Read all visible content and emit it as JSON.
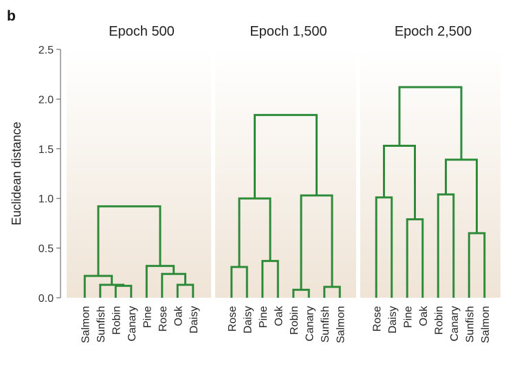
{
  "figure": {
    "panel_label": "b",
    "ylabel": "Euclidean distance",
    "colors": {
      "line": "#2e8b3a",
      "panel_top": "#ffffff",
      "panel_bottom": "#efe4d6",
      "axis": "#555555"
    }
  },
  "chart_data": [
    {
      "type": "dendrogram",
      "title": "Epoch 500",
      "ylim": [
        0,
        2.5
      ],
      "yticks": [
        "0.0",
        "0.5",
        "1.0",
        "1.5",
        "2.0",
        "2.5"
      ],
      "leaves": [
        "Salmon",
        "Sunfish",
        "Robin",
        "Canary",
        "Pine",
        "Rose",
        "Oak",
        "Daisy"
      ],
      "merges": [
        {
          "a": 2,
          "b": 3,
          "height": 0.12
        },
        {
          "a": 1,
          "b": 8,
          "height": 0.13
        },
        {
          "a": 0,
          "b": 9,
          "height": 0.22
        },
        {
          "a": 6,
          "b": 7,
          "height": 0.13
        },
        {
          "a": 5,
          "b": 11,
          "height": 0.24
        },
        {
          "a": 4,
          "b": 12,
          "height": 0.32
        },
        {
          "a": 10,
          "b": 13,
          "height": 0.92
        }
      ]
    },
    {
      "type": "dendrogram",
      "title": "Epoch 1,500",
      "ylim": [
        0,
        2.5
      ],
      "leaves": [
        "Rose",
        "Daisy",
        "Pine",
        "Oak",
        "Robin",
        "Canary",
        "Sunfish",
        "Salmon"
      ],
      "merges": [
        {
          "a": 0,
          "b": 1,
          "height": 0.31
        },
        {
          "a": 2,
          "b": 3,
          "height": 0.37
        },
        {
          "a": 8,
          "b": 9,
          "height": 1.0
        },
        {
          "a": 4,
          "b": 5,
          "height": 0.08
        },
        {
          "a": 6,
          "b": 7,
          "height": 0.11
        },
        {
          "a": 11,
          "b": 12,
          "height": 1.03
        },
        {
          "a": 10,
          "b": 13,
          "height": 1.84
        }
      ]
    },
    {
      "type": "dendrogram",
      "title": "Epoch 2,500",
      "ylim": [
        0,
        2.5
      ],
      "leaves": [
        "Rose",
        "Daisy",
        "Pine",
        "Oak",
        "Robin",
        "Canary",
        "Sunfish",
        "Salmon"
      ],
      "merges": [
        {
          "a": 0,
          "b": 1,
          "height": 1.01
        },
        {
          "a": 2,
          "b": 3,
          "height": 0.79
        },
        {
          "a": 8,
          "b": 9,
          "height": 1.53
        },
        {
          "a": 4,
          "b": 5,
          "height": 1.04
        },
        {
          "a": 6,
          "b": 7,
          "height": 0.65
        },
        {
          "a": 11,
          "b": 12,
          "height": 1.39
        },
        {
          "a": 10,
          "b": 13,
          "height": 2.12
        }
      ]
    }
  ]
}
